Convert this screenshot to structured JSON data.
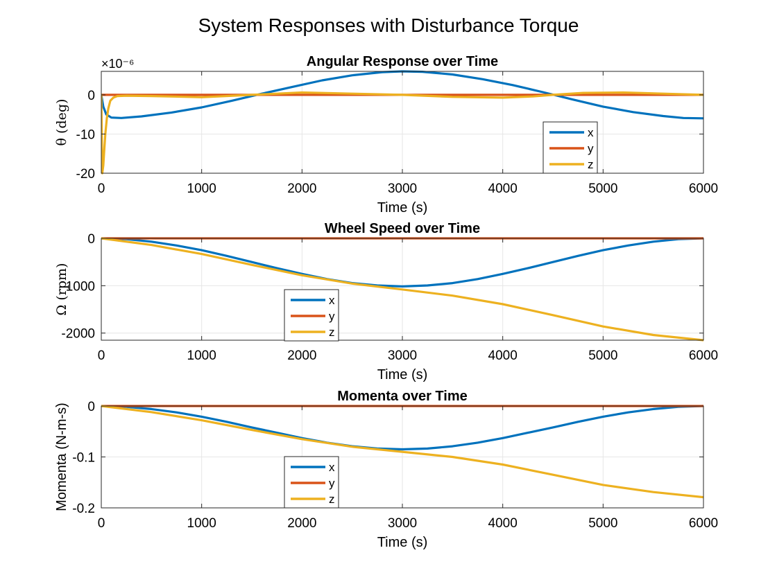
{
  "figure": {
    "title": "System Responses with Disturbance Torque"
  },
  "colors": {
    "x": "#0072BD",
    "y": "#D95319",
    "z": "#EDB120",
    "grid": "#e6e6e6",
    "axis": "#262626"
  },
  "chart_data": [
    {
      "type": "line",
      "title": "Angular Response over Time",
      "xlabel": "Time (s)",
      "ylabel": "θ (deg)",
      "ylabel_style": "math",
      "exponent_label": "×10⁻⁶",
      "xlim": [
        0,
        6000
      ],
      "ylim": [
        -20,
        6
      ],
      "yscale_factor": 1e-06,
      "xticks": [
        0,
        1000,
        2000,
        3000,
        4000,
        5000,
        6000
      ],
      "yticks": [
        -20,
        -10,
        0
      ],
      "grid": true,
      "legend": {
        "entries": [
          "x",
          "y",
          "z"
        ],
        "placement": "lower-right-inside"
      },
      "series": [
        {
          "name": "x",
          "x": [
            0,
            20,
            50,
            100,
            200,
            400,
            700,
            1000,
            1300,
            1600,
            1900,
            2200,
            2500,
            2800,
            3000,
            3200,
            3500,
            3800,
            4100,
            4400,
            4700,
            5000,
            5300,
            5600,
            5800,
            6000
          ],
          "values": [
            0,
            -3,
            -5,
            -5.8,
            -5.9,
            -5.5,
            -4.5,
            -3.2,
            -1.5,
            0.3,
            2,
            3.7,
            5,
            5.8,
            6,
            5.9,
            5.2,
            4,
            2.5,
            0.7,
            -1.2,
            -3,
            -4.4,
            -5.4,
            -5.9,
            -6
          ]
        },
        {
          "name": "y",
          "x": [
            0,
            6000
          ],
          "values": [
            0,
            0
          ]
        },
        {
          "name": "z",
          "x": [
            0,
            10,
            20,
            30,
            40,
            55,
            70,
            90,
            120,
            160,
            250,
            500,
            1000,
            1500,
            2000,
            2500,
            3000,
            3500,
            4000,
            4300,
            4500,
            4800,
            5200,
            5600,
            6000
          ],
          "values": [
            0,
            -20,
            -18,
            -14,
            -10,
            -6,
            -3.5,
            -1.5,
            -0.7,
            -0.3,
            -0.2,
            -0.3,
            -0.6,
            0,
            0.6,
            0.3,
            0,
            -0.5,
            -0.7,
            -0.4,
            0,
            0.5,
            0.6,
            0.3,
            0
          ]
        }
      ]
    },
    {
      "type": "line",
      "title": "Wheel Speed over Time",
      "xlabel": "Time (s)",
      "ylabel": "Ω (rpm)",
      "ylabel_style": "math",
      "xlim": [
        0,
        6000
      ],
      "ylim": [
        -2150,
        0
      ],
      "xticks": [
        0,
        1000,
        2000,
        3000,
        4000,
        5000,
        6000
      ],
      "yticks": [
        -2000,
        -1000,
        0
      ],
      "grid": true,
      "legend": {
        "entries": [
          "x",
          "y",
          "z"
        ],
        "placement": "lower-left-inside"
      },
      "series": [
        {
          "name": "x",
          "x": [
            0,
            250,
            500,
            750,
            1000,
            1250,
            1500,
            1750,
            2000,
            2250,
            2500,
            2750,
            3000,
            3250,
            3500,
            3750,
            4000,
            4250,
            4500,
            4750,
            5000,
            5250,
            5500,
            5750,
            6000
          ],
          "values": [
            0,
            -18,
            -70,
            -150,
            -250,
            -370,
            -500,
            -630,
            -750,
            -860,
            -945,
            -995,
            -1015,
            -995,
            -945,
            -860,
            -750,
            -630,
            -500,
            -370,
            -250,
            -150,
            -70,
            -18,
            0
          ]
        },
        {
          "name": "y",
          "x": [
            0,
            6000
          ],
          "values": [
            0,
            0
          ]
        },
        {
          "name": "z",
          "x": [
            0,
            500,
            1000,
            1500,
            2000,
            2500,
            3000,
            3500,
            4000,
            4500,
            5000,
            5500,
            6000
          ],
          "values": [
            0,
            -140,
            -330,
            -560,
            -780,
            -955,
            -1080,
            -1210,
            -1390,
            -1620,
            -1860,
            -2040,
            -2150
          ]
        }
      ]
    },
    {
      "type": "line",
      "title": "Momenta over Time",
      "xlabel": "Time (s)",
      "ylabel": "Momenta (N-m-s)",
      "ylabel_style": "text",
      "xlim": [
        0,
        6000
      ],
      "ylim": [
        -0.2,
        0
      ],
      "xticks": [
        0,
        1000,
        2000,
        3000,
        4000,
        5000,
        6000
      ],
      "yticks": [
        -0.2,
        -0.1,
        0
      ],
      "grid": true,
      "legend": {
        "entries": [
          "x",
          "y",
          "z"
        ],
        "placement": "lower-left-inside"
      },
      "series": [
        {
          "name": "x",
          "x": [
            0,
            250,
            500,
            750,
            1000,
            1250,
            1500,
            1750,
            2000,
            2250,
            2500,
            2750,
            3000,
            3250,
            3500,
            3750,
            4000,
            4250,
            4500,
            4750,
            5000,
            5250,
            5500,
            5750,
            6000
          ],
          "values": [
            0,
            -0.0015,
            -0.006,
            -0.0125,
            -0.021,
            -0.031,
            -0.042,
            -0.0525,
            -0.063,
            -0.072,
            -0.079,
            -0.0835,
            -0.085,
            -0.0835,
            -0.079,
            -0.072,
            -0.063,
            -0.0525,
            -0.042,
            -0.031,
            -0.021,
            -0.0125,
            -0.006,
            -0.0015,
            0
          ]
        },
        {
          "name": "y",
          "x": [
            0,
            6000
          ],
          "values": [
            0,
            0
          ]
        },
        {
          "name": "z",
          "x": [
            0,
            500,
            1000,
            1500,
            2000,
            2500,
            3000,
            3500,
            4000,
            4500,
            5000,
            5500,
            6000
          ],
          "values": [
            0,
            -0.012,
            -0.028,
            -0.047,
            -0.065,
            -0.08,
            -0.09,
            -0.1,
            -0.115,
            -0.135,
            -0.155,
            -0.169,
            -0.179
          ]
        }
      ]
    }
  ]
}
